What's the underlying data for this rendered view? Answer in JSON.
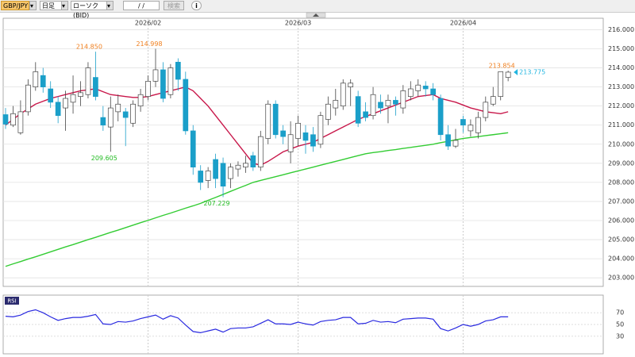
{
  "toolbar": {
    "symbol": "GBP/JPY",
    "period": "日足",
    "chart_kind": "ローソク(BID)",
    "date": "/ /",
    "search": "検索"
  },
  "chart_data": [
    {
      "type": "candlestick",
      "categories": [
        null,
        null,
        null,
        null,
        null,
        null,
        null,
        null,
        null,
        null,
        null,
        null,
        null,
        null,
        null,
        null,
        null,
        null,
        null,
        "2026/02",
        null,
        null,
        null,
        null,
        null,
        null,
        null,
        null,
        null,
        null,
        null,
        null,
        null,
        null,
        null,
        null,
        null,
        null,
        null,
        "2026/03",
        null,
        null,
        null,
        null,
        null,
        null,
        null,
        null,
        null,
        null,
        null,
        null,
        null,
        null,
        null,
        null,
        null,
        null,
        null,
        null,
        null,
        "2026/04",
        null,
        null,
        null,
        null,
        null,
        null
      ],
      "open": [
        211.55,
        211.0,
        210.6,
        211.7,
        213.0,
        213.6,
        212.9,
        212.2,
        211.9,
        212.2,
        212.5,
        212.6,
        213.5,
        211.4,
        210.9,
        211.7,
        211.7,
        211.1,
        212.0,
        212.5,
        213.3,
        213.9,
        212.6,
        214.3,
        213.4,
        210.7,
        208.6,
        208.1,
        209.2,
        209.0,
        208.2,
        208.7,
        208.8,
        209.4,
        208.8,
        210.3,
        212.1,
        210.7,
        209.6,
        210.3,
        210.6,
        210.5,
        210.0,
        211.3,
        211.9,
        212.0,
        213.0,
        212.5,
        211.7,
        211.5,
        212.2,
        212.0,
        212.3,
        211.9,
        212.5,
        212.8,
        213.05,
        212.9,
        212.4,
        210.5,
        209.9,
        211.3,
        210.7,
        210.6,
        211.4,
        212.1,
        212.5,
        213.5
      ],
      "high": [
        211.9,
        212.0,
        212.3,
        213.4,
        214.3,
        214.0,
        213.3,
        212.5,
        212.8,
        213.6,
        213.3,
        214.3,
        214.85,
        212.0,
        212.5,
        212.6,
        211.9,
        212.3,
        212.9,
        213.6,
        214.998,
        214.3,
        214.2,
        214.5,
        213.8,
        211.0,
        208.9,
        208.8,
        209.5,
        209.3,
        209.0,
        209.1,
        209.4,
        209.6,
        210.7,
        212.3,
        212.3,
        211.0,
        211.2,
        211.5,
        211.0,
        210.9,
        211.7,
        212.5,
        212.9,
        213.4,
        213.4,
        212.8,
        212.2,
        213.0,
        212.6,
        212.6,
        212.5,
        213.1,
        213.3,
        213.4,
        213.3,
        213.2,
        212.6,
        211.0,
        210.8,
        211.5,
        211.3,
        211.7,
        212.5,
        213.0,
        213.8,
        213.854
      ],
      "low": [
        210.8,
        210.9,
        210.5,
        211.5,
        212.8,
        212.7,
        211.9,
        211.1,
        210.7,
        211.6,
        212.0,
        212.4,
        212.3,
        210.7,
        209.605,
        211.2,
        209.9,
        210.9,
        211.7,
        212.3,
        213.0,
        212.2,
        212.4,
        212.8,
        210.5,
        208.4,
        207.6,
        207.7,
        207.7,
        207.229,
        207.7,
        208.3,
        208.5,
        208.6,
        208.6,
        210.0,
        210.3,
        210.0,
        209.0,
        209.9,
        209.5,
        209.6,
        209.8,
        211.0,
        211.5,
        211.8,
        212.0,
        210.9,
        211.2,
        211.3,
        211.6,
        211.1,
        211.5,
        211.6,
        212.3,
        212.5,
        212.5,
        212.3,
        210.2,
        209.7,
        209.8,
        210.6,
        210.4,
        210.3,
        211.2,
        212.0,
        212.3,
        213.3
      ],
      "close": [
        211.05,
        211.6,
        211.7,
        213.1,
        213.8,
        213.0,
        212.2,
        211.5,
        212.4,
        212.6,
        212.7,
        214.0,
        212.5,
        211.0,
        211.9,
        212.1,
        211.4,
        212.1,
        212.6,
        213.3,
        213.9,
        212.4,
        214.0,
        213.4,
        210.7,
        208.8,
        208.0,
        208.6,
        208.2,
        207.8,
        208.8,
        208.9,
        209.0,
        208.8,
        210.4,
        212.1,
        210.5,
        210.4,
        210.5,
        211.1,
        210.2,
        209.9,
        211.5,
        212.1,
        212.3,
        213.2,
        213.2,
        211.1,
        211.4,
        212.6,
        211.9,
        212.3,
        212.1,
        212.8,
        212.9,
        213.1,
        212.9,
        212.6,
        210.5,
        209.9,
        210.2,
        211.0,
        211.0,
        211.4,
        212.2,
        212.5,
        213.8,
        213.775
      ],
      "up_color": "#ffffff",
      "down_color": "#1a9fc9",
      "lines": [
        {
          "color": "#c8174a",
          "values": [
            211.0,
            211.3,
            211.6,
            211.85,
            212.1,
            212.25,
            212.4,
            212.5,
            212.6,
            212.7,
            212.8,
            212.85,
            212.9,
            212.75,
            212.6,
            212.55,
            212.5,
            212.45,
            212.45,
            212.5,
            212.6,
            212.7,
            212.8,
            212.9,
            213.0,
            212.8,
            212.4,
            212.0,
            211.5,
            211.0,
            210.5,
            210.0,
            209.5,
            209.0,
            208.9,
            209.1,
            209.35,
            209.6,
            209.75,
            209.9,
            210.0,
            210.1,
            210.3,
            210.5,
            210.7,
            210.9,
            211.1,
            211.3,
            211.45,
            211.6,
            211.75,
            211.9,
            212.05,
            212.2,
            212.35,
            212.5,
            212.55,
            212.6,
            212.4,
            212.3,
            212.2,
            212.05,
            211.9,
            211.8,
            211.7,
            211.65,
            211.6,
            211.7
          ]
        },
        {
          "color": "#33cc33",
          "values": [
            203.6,
            203.73,
            203.85,
            203.98,
            204.1,
            204.23,
            204.36,
            204.49,
            204.62,
            204.74,
            204.87,
            205.0,
            205.12,
            205.25,
            205.38,
            205.5,
            205.63,
            205.76,
            205.89,
            206.01,
            206.14,
            206.27,
            206.39,
            206.52,
            206.65,
            206.77,
            206.9,
            207.06,
            207.21,
            207.37,
            207.53,
            207.69,
            207.84,
            208.0,
            208.1,
            208.2,
            208.3,
            208.4,
            208.5,
            208.6,
            208.7,
            208.8,
            208.9,
            209.0,
            209.1,
            209.2,
            209.3,
            209.4,
            209.5,
            209.56,
            209.61,
            209.67,
            209.72,
            209.78,
            209.83,
            209.89,
            209.94,
            210.0,
            210.08,
            210.15,
            210.23,
            210.3,
            210.35,
            210.4,
            210.45,
            210.5,
            210.55,
            210.6
          ]
        }
      ],
      "ylim": [
        202.55,
        216.6
      ],
      "yticks": [
        {
          "value": 203,
          "label": "203.000"
        },
        {
          "value": 204,
          "label": "204.000"
        },
        {
          "value": 205,
          "label": "205.000"
        },
        {
          "value": 206,
          "label": "206.000"
        },
        {
          "value": 207,
          "label": "207.000"
        },
        {
          "value": 208,
          "label": "208.000"
        },
        {
          "value": 209,
          "label": "209.000"
        },
        {
          "value": 210,
          "label": "210.000"
        },
        {
          "value": 211,
          "label": "211.000"
        },
        {
          "value": 212,
          "label": "212.000"
        },
        {
          "value": 213,
          "label": "213.000"
        },
        {
          "value": 214,
          "label": "214.000"
        },
        {
          "value": 215,
          "label": "215.000"
        },
        {
          "value": 216,
          "label": "216.000"
        }
      ],
      "grid": true,
      "annotations": [
        {
          "value": 214.85,
          "label": "214.850",
          "color": "#f08020"
        },
        {
          "value": 214.998,
          "label": "214.998",
          "color": "#f08020"
        },
        {
          "value": 213.854,
          "label": "213.854",
          "color": "#f08020"
        },
        {
          "value": 209.605,
          "label": "209.605",
          "color": "#22bb22"
        },
        {
          "value": 207.229,
          "label": "207.229",
          "color": "#22bb22"
        }
      ],
      "last": {
        "value": 213.775,
        "label": "213.775",
        "color": "#22b5e0"
      }
    },
    {
      "type": "line",
      "title": "RSI",
      "series": [
        {
          "color": "#2a2ae0",
          "values": [
            64,
            63,
            66,
            72,
            75,
            70,
            63,
            57,
            60,
            62,
            62,
            64,
            67,
            51,
            50,
            55,
            54,
            56,
            60,
            63,
            66,
            59,
            65,
            61,
            49,
            38,
            36,
            39,
            42,
            37,
            43,
            44,
            44,
            46,
            52,
            58,
            51,
            51,
            50,
            54,
            51,
            49,
            55,
            57,
            58,
            62,
            62,
            51,
            52,
            57,
            54,
            55,
            53,
            59,
            60,
            61,
            61,
            59,
            43,
            39,
            44,
            50,
            47,
            50,
            56,
            58,
            63,
            63
          ]
        }
      ],
      "ylim": [
        0,
        100
      ],
      "yticks": [
        30,
        50,
        70
      ]
    }
  ]
}
